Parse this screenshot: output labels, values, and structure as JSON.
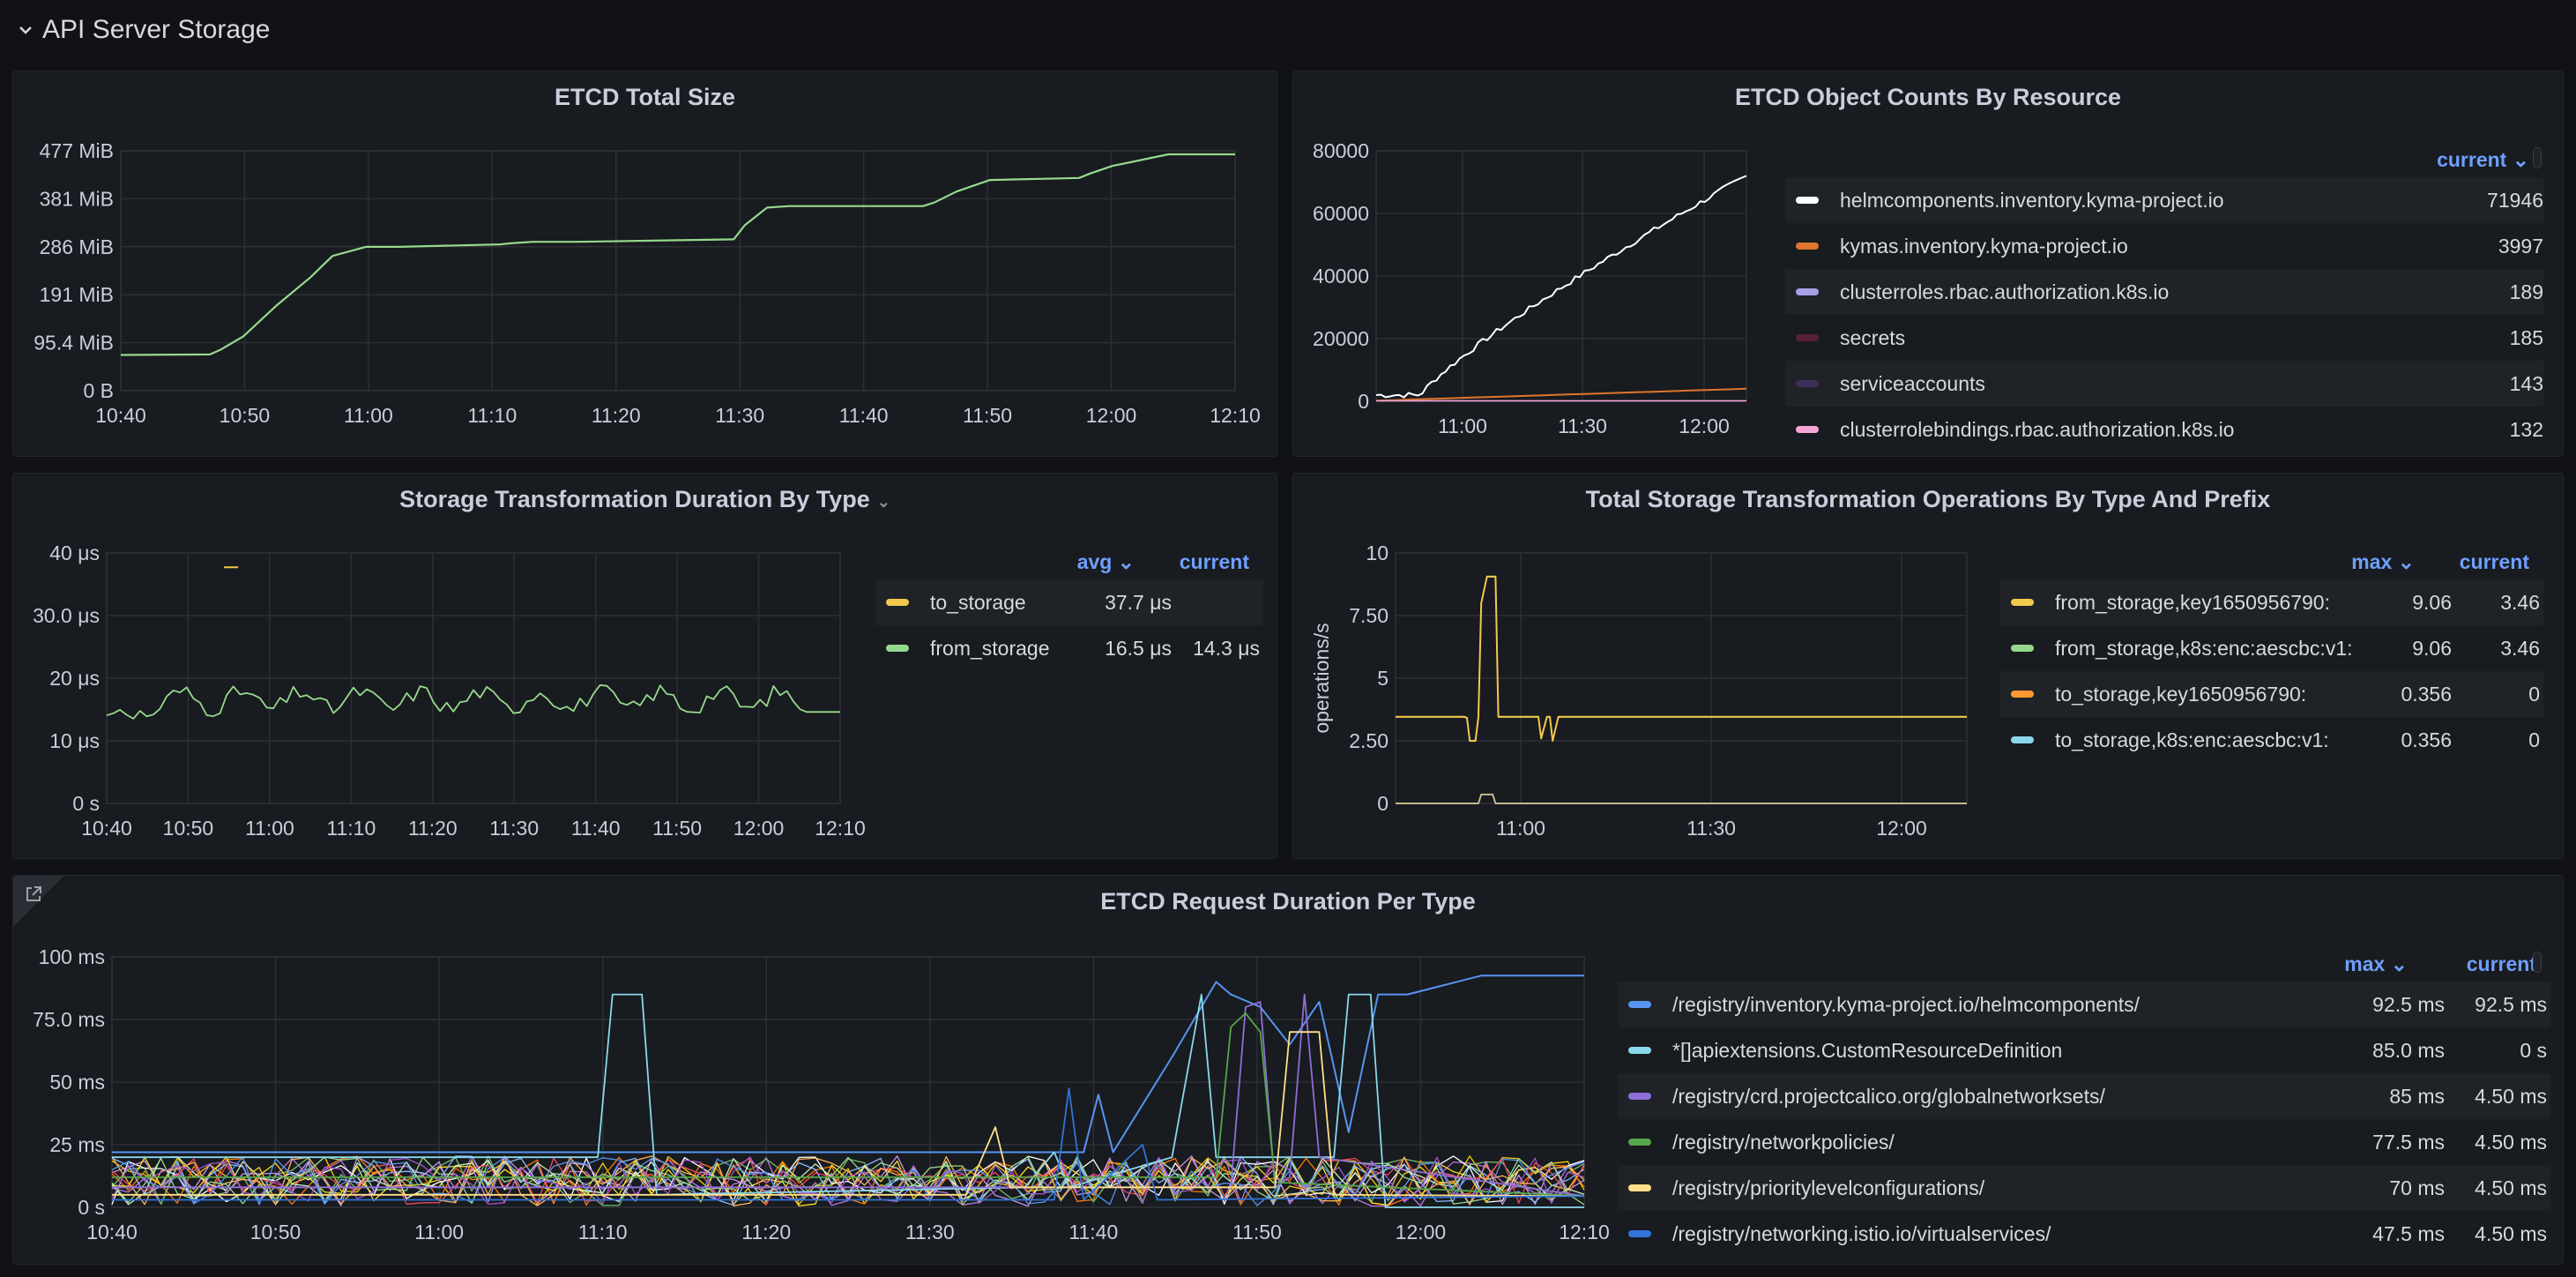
{
  "row": {
    "title": "API Server Storage"
  },
  "panels": {
    "etcd_total_size": {
      "title": "ETCD Total Size",
      "chart_data": {
        "type": "line",
        "title": "ETCD Total Size",
        "y_ticks": [
          "477 MiB",
          "381 MiB",
          "286 MiB",
          "191 MiB",
          "95.4 MiB",
          "0 B"
        ],
        "x_ticks": [
          "10:40",
          "10:50",
          "11:00",
          "11:10",
          "11:20",
          "11:30",
          "11:40",
          "11:50",
          "12:00",
          "12:10"
        ],
        "ylim": [
          0,
          477
        ],
        "y_unit": "MiB",
        "series": [
          {
            "name": "",
            "color": "#96d98d",
            "x": [
              0,
              8,
              9,
              11,
              14,
              17,
              19,
              22,
              25,
              34,
              35,
              37,
              41,
              55,
              56,
              58,
              60,
              72,
              73,
              75,
              78,
              86,
              87,
              89,
              94,
              100
            ],
            "y": [
              71,
              72,
              82,
              108,
              170,
              225,
              268,
              286,
              286,
              291,
              293,
              296,
              296,
              301,
              329,
              364,
              367,
              367,
              374,
              396,
              419,
              423,
              432,
              447,
              470,
              470
            ]
          }
        ],
        "x_domain_note": "minutes since 10:40 scaled 0-100 across 10:40-12:10"
      }
    },
    "etcd_object_counts": {
      "title": "ETCD Object Counts By Resource",
      "legend_header": "current",
      "chart_data": {
        "type": "line",
        "title": "ETCD Object Counts By Resource",
        "y_ticks": [
          "80000",
          "60000",
          "40000",
          "20000",
          "0"
        ],
        "x_ticks": [
          "11:00",
          "11:30",
          "12:00"
        ],
        "ylim": [
          0,
          80000
        ],
        "series": [
          {
            "name": "helmcomponents.inventory.kyma-project.io",
            "color": "#ffffff",
            "current": "71946"
          },
          {
            "name": "kymas.inventory.kyma-project.io",
            "color": "#e0752d",
            "current": "3997"
          },
          {
            "name": "clusterroles.rbac.authorization.k8s.io",
            "color": "#a7a0e8",
            "current": "189"
          },
          {
            "name": "secrets",
            "color": "#58203a",
            "current": "185"
          },
          {
            "name": "serviceaccounts",
            "color": "#3b2f5a",
            "current": "143"
          },
          {
            "name": "clusterrolebindings.rbac.authorization.k8s.io",
            "color": "#f5a6d6",
            "current": "132"
          }
        ]
      }
    },
    "storage_transformation_duration": {
      "title": "Storage Transformation Duration By Type",
      "legend_headers": [
        "avg",
        "current"
      ],
      "chart_data": {
        "type": "line",
        "title": "Storage Transformation Duration By Type",
        "y_ticks": [
          "40 μs",
          "30.0 μs",
          "20 μs",
          "10 μs",
          "0 s"
        ],
        "x_ticks": [
          "10:40",
          "10:50",
          "11:00",
          "11:10",
          "11:20",
          "11:30",
          "11:40",
          "11:50",
          "12:00",
          "12:10"
        ],
        "ylim": [
          0,
          40
        ],
        "series": [
          {
            "name": "to_storage",
            "color": "#f2c94c",
            "avg": "37.7 μs",
            "current": ""
          },
          {
            "name": "from_storage",
            "color": "#96d98d",
            "avg": "16.5 μs",
            "current": "14.3 μs"
          }
        ]
      }
    },
    "total_storage_transformation_ops": {
      "title": "Total Storage Transformation Operations By Type And Prefix",
      "legend_headers": [
        "max",
        "current"
      ],
      "chart_data": {
        "type": "line",
        "title": "Total Storage Transformation Operations By Type And Prefix",
        "y_ticks": [
          "10",
          "7.50",
          "5",
          "2.50",
          "0"
        ],
        "ylabel": "operations/s",
        "x_ticks": [
          "11:00",
          "11:30",
          "12:00"
        ],
        "ylim": [
          0,
          10
        ],
        "series": [
          {
            "name": "from_storage,key1650956790:",
            "color": "#f2c94c",
            "max": "9.06",
            "current": "3.46"
          },
          {
            "name": "from_storage,k8s:enc:aescbc:v1:",
            "color": "#96d98d",
            "max": "9.06",
            "current": "3.46"
          },
          {
            "name": "to_storage,key1650956790:",
            "color": "#ff9830",
            "max": "0.356",
            "current": "0"
          },
          {
            "name": "to_storage,k8s:enc:aescbc:v1:",
            "color": "#8ad8eb",
            "max": "0.356",
            "current": "0"
          }
        ]
      }
    },
    "etcd_request_duration": {
      "title": "ETCD Request Duration Per Type",
      "legend_headers": [
        "max",
        "current"
      ],
      "chart_data": {
        "type": "line",
        "title": "ETCD Request Duration Per Type",
        "y_ticks": [
          "100 ms",
          "75.0 ms",
          "50 ms",
          "25 ms",
          "0 s"
        ],
        "x_ticks": [
          "10:40",
          "10:50",
          "11:00",
          "11:10",
          "11:20",
          "11:30",
          "11:40",
          "11:50",
          "12:00",
          "12:10"
        ],
        "ylim": [
          0,
          100
        ],
        "series": [
          {
            "name": "/registry/inventory.kyma-project.io/helmcomponents/",
            "color": "#5794f2",
            "max": "92.5 ms",
            "current": "92.5 ms"
          },
          {
            "name": "*[]apiextensions.CustomResourceDefinition",
            "color": "#8ad8eb",
            "max": "85.0 ms",
            "current": "0 s"
          },
          {
            "name": "/registry/crd.projectcalico.org/globalnetworksets/",
            "color": "#8f6fd6",
            "max": "85 ms",
            "current": "4.50 ms"
          },
          {
            "name": "/registry/networkpolicies/",
            "color": "#56a64b",
            "max": "77.5 ms",
            "current": "4.50 ms"
          },
          {
            "name": "/registry/prioritylevelconfigurations/",
            "color": "#ffe08a",
            "max": "70 ms",
            "current": "4.50 ms"
          },
          {
            "name": "/registry/networking.istio.io/virtualservices/",
            "color": "#3274d9",
            "max": "47.5 ms",
            "current": "4.50 ms"
          }
        ]
      }
    }
  }
}
